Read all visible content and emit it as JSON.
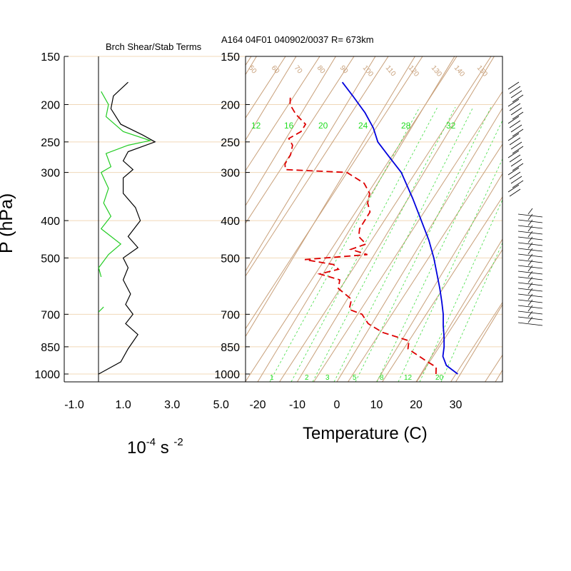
{
  "header": {
    "left_title": "Brch Shear/Stab Terms",
    "right_title": "A164 04F01 040902/0037 R= 673km"
  },
  "pressure_axis": {
    "label": "P (hPa)",
    "levels": [
      150,
      200,
      250,
      300,
      400,
      500,
      700,
      850,
      1000
    ],
    "tick_labels": [
      "150",
      "200",
      "250",
      "300",
      "400",
      "500",
      "700",
      "850",
      "1000"
    ]
  },
  "shear_axis": {
    "tick_values": [
      -1.0,
      1.0,
      3.0,
      5.0
    ],
    "tick_labels": [
      "-1.0",
      "1.0",
      "3.0",
      "5.0"
    ],
    "units_base": "10",
    "units_exp1": "-4",
    "units_mid": " s ",
    "units_exp2": "-2",
    "xlim": [
      -1.0,
      5.0
    ]
  },
  "temp_axis": {
    "label": "Temperature (C)",
    "tick_values": [
      -20,
      -10,
      0,
      10,
      20,
      30
    ],
    "tick_labels": [
      "-20",
      "-10",
      "0",
      "10",
      "20",
      "30"
    ]
  },
  "skewt_labels": {
    "mixing_ratio_top": [
      "12",
      "16",
      "20",
      "24",
      "28",
      "32"
    ],
    "mixing_ratio_bottom": [
      "1",
      "2",
      "3",
      "5",
      "8",
      "12",
      "20"
    ],
    "dry_adiabats": [
      "50",
      "60",
      "70",
      "80",
      "90",
      "100",
      "110",
      "120",
      "130",
      "140",
      "150"
    ]
  },
  "colors": {
    "axis": "#000000",
    "isobar": "#f0d8b8",
    "skew_grid": "#c8a07a",
    "shear_line": "#000000",
    "stab_line": "#22cc22",
    "temperature_line": "#0000dd",
    "dewpoint_line": "#dd0000",
    "mixing_ratio": "#44dd44",
    "wind_barb": "#000000"
  },
  "chart_data": [
    {
      "type": "line",
      "title": "Brch Shear/Stab Terms",
      "xlabel": "10^-4 s^-2",
      "ylabel": "P (hPa)",
      "xlim": [
        -1.0,
        5.0
      ],
      "ylim": [
        1000,
        150
      ],
      "y_scale": "log",
      "series": [
        {
          "points": [
            [
              1.2,
              175
            ],
            [
              0.6,
              190
            ],
            [
              0.5,
              205
            ],
            [
              0.9,
              225
            ],
            [
              1.8,
              240
            ],
            [
              2.3,
              250
            ],
            [
              1.2,
              265
            ],
            [
              1.0,
              280
            ],
            [
              1.4,
              295
            ],
            [
              1.0,
              310
            ],
            [
              1.0,
              340
            ],
            [
              1.5,
              370
            ],
            [
              1.7,
              400
            ],
            [
              1.2,
              440
            ],
            [
              1.6,
              470
            ],
            [
              1.0,
              500
            ],
            [
              1.2,
              530
            ],
            [
              1.0,
              570
            ],
            [
              1.3,
              620
            ],
            [
              1.1,
              660
            ],
            [
              1.4,
              700
            ],
            [
              1.1,
              740
            ],
            [
              1.6,
              790
            ],
            [
              1.2,
              860
            ],
            [
              0.9,
              930
            ],
            [
              0.0,
              1000
            ]
          ]
        },
        {
          "points": [
            [
              0.1,
              185
            ],
            [
              0.4,
              200
            ],
            [
              0.3,
              215
            ],
            [
              1.0,
              235
            ],
            [
              2.1,
              248
            ],
            [
              1.2,
              255
            ],
            [
              0.3,
              268
            ],
            [
              0.5,
              290
            ],
            [
              0.1,
              300
            ],
            [
              0.4,
              330
            ],
            [
              0.2,
              360
            ],
            [
              0.5,
              390
            ],
            [
              0.1,
              420
            ],
            [
              0.9,
              460
            ],
            [
              0.4,
              490
            ],
            [
              0.0,
              530
            ],
            [
              0.1,
              560
            ]
          ]
        },
        {
          "points": [
            [
              0.0,
              690
            ],
            [
              0.2,
              670
            ]
          ]
        }
      ]
    },
    {
      "type": "line",
      "title": "A164 04F01 040902/0037 R= 673km",
      "xlabel": "Temperature (C)",
      "ylabel": "P (hPa)",
      "ylim": [
        1000,
        150
      ],
      "y_scale": "log",
      "skewed": true,
      "series": [
        {
          "name": "Temperature",
          "points": [
            [
              1000,
              30.5
            ],
            [
              950,
              26.3
            ],
            [
              900,
              24.0
            ],
            [
              850,
              22.8
            ],
            [
              800,
              21.2
            ],
            [
              750,
              19.3
            ],
            [
              700,
              17.5
            ],
            [
              650,
              15.2
            ],
            [
              600,
              12.6
            ],
            [
              550,
              9.6
            ],
            [
              500,
              6.3
            ],
            [
              450,
              2.3
            ],
            [
              400,
              -2.7
            ],
            [
              350,
              -8.4
            ],
            [
              300,
              -15.3
            ],
            [
              270,
              -21.5
            ],
            [
              250,
              -26.0
            ],
            [
              230,
              -29.3
            ],
            [
              210,
              -33.8
            ],
            [
              190,
              -39.5
            ],
            [
              175,
              -44.3
            ]
          ]
        },
        {
          "name": "Dewpoint",
          "points": [
            [
              1000,
              25.0
            ],
            [
              960,
              24.0
            ],
            [
              920,
              20.0
            ],
            [
              860,
              14.0
            ],
            [
              820,
              13.0
            ],
            [
              780,
              5.0
            ],
            [
              740,
              0.0
            ],
            [
              700,
              -3.0
            ],
            [
              680,
              -7.0
            ],
            [
              640,
              -8.0
            ],
            [
              600,
              -13.0
            ],
            [
              570,
              -14.0
            ],
            [
              550,
              -20.0
            ],
            [
              535,
              -16.0
            ],
            [
              520,
              -18.0
            ],
            [
              505,
              -26.0
            ],
            [
              490,
              -11.0
            ],
            [
              475,
              -16.0
            ],
            [
              460,
              -13.0
            ],
            [
              440,
              -16.0
            ],
            [
              420,
              -17.0
            ],
            [
              400,
              -17.0
            ],
            [
              380,
              -17.0
            ],
            [
              360,
              -19.0
            ],
            [
              340,
              -20.0
            ],
            [
              320,
              -23.0
            ],
            [
              300,
              -29.0
            ],
            [
              295,
              -45.0
            ],
            [
              285,
              -46.0
            ],
            [
              270,
              -46.0
            ],
            [
              255,
              -47.0
            ],
            [
              245,
              -49.0
            ],
            [
              235,
              -47.0
            ],
            [
              225,
              -47.0
            ],
            [
              212,
              -51.0
            ],
            [
              200,
              -54.0
            ],
            [
              192,
              -55.0
            ]
          ]
        }
      ]
    }
  ]
}
